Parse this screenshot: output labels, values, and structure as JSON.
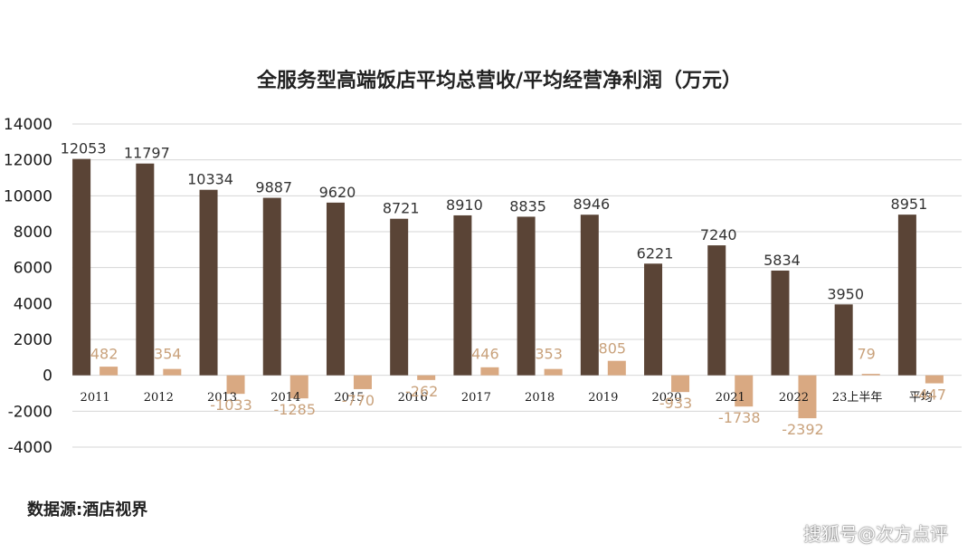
{
  "chart_data": {
    "type": "bar",
    "title": "全服务型高端饭店平均总营收/平均经营净利润（万元）",
    "categories": [
      "2011",
      "2012",
      "2013",
      "2014",
      "2015",
      "2016",
      "2017",
      "2018",
      "2019",
      "2020",
      "2021",
      "2022",
      "23上半年",
      "平均"
    ],
    "series": [
      {
        "values": [
          12053,
          11797,
          10334,
          9887,
          9620,
          8721,
          8910,
          8835,
          8946,
          6221,
          7240,
          5834,
          3950,
          8951
        ],
        "color": "#5a4436"
      },
      {
        "values": [
          482,
          354,
          -1033,
          -1285,
          -770,
          -262,
          446,
          353,
          805,
          -933,
          -1738,
          -2392,
          79,
          -447
        ],
        "color": "#d9a982"
      }
    ],
    "ylim": [
      -4000,
      14000
    ],
    "yticks": [
      14000,
      12000,
      10000,
      8000,
      6000,
      4000,
      2000,
      0,
      -2000,
      -4000
    ],
    "grid": true,
    "xlabel": "",
    "ylabel": ""
  },
  "source": "数据源:酒店视界",
  "watermark": "搜狐号@次方点评"
}
